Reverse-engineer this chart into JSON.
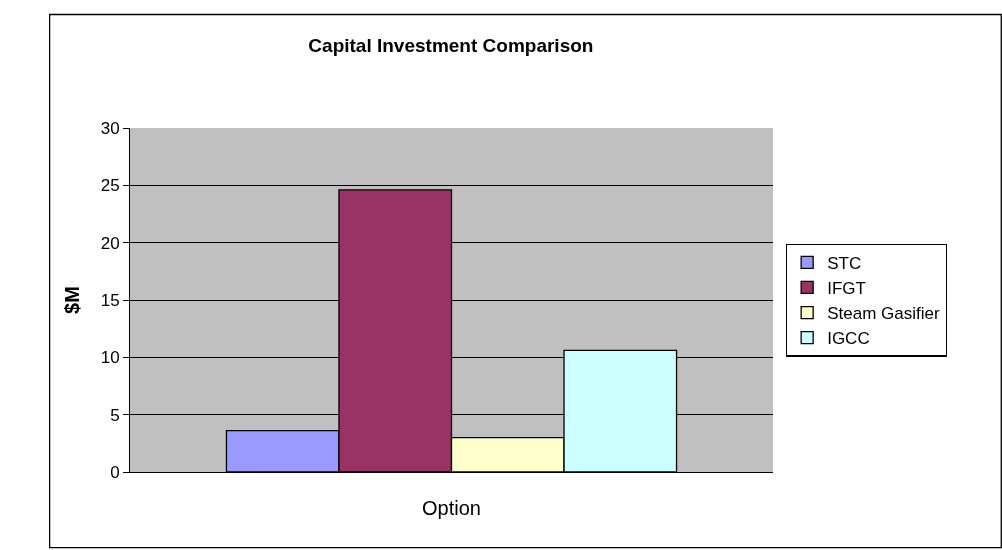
{
  "chart_data": {
    "type": "bar",
    "title": "Capital Investment Comparison",
    "xlabel": "Option",
    "ylabel": "$M",
    "categories": [
      null
    ],
    "series": [
      {
        "name": "STC",
        "color": "#9999ff",
        "values": [
          3.6
        ]
      },
      {
        "name": "IFGT",
        "color": "#993366",
        "values": [
          24.6
        ]
      },
      {
        "name": "Steam Gasifier",
        "color": "#ffffcc",
        "values": [
          3.0
        ]
      },
      {
        "name": "IGCC",
        "color": "#ccffff",
        "values": [
          10.6
        ]
      }
    ],
    "ylim": [
      0,
      30
    ],
    "yticks": [
      0,
      5,
      10,
      15,
      20,
      25,
      30
    ],
    "grid": "y",
    "legend": "right"
  }
}
